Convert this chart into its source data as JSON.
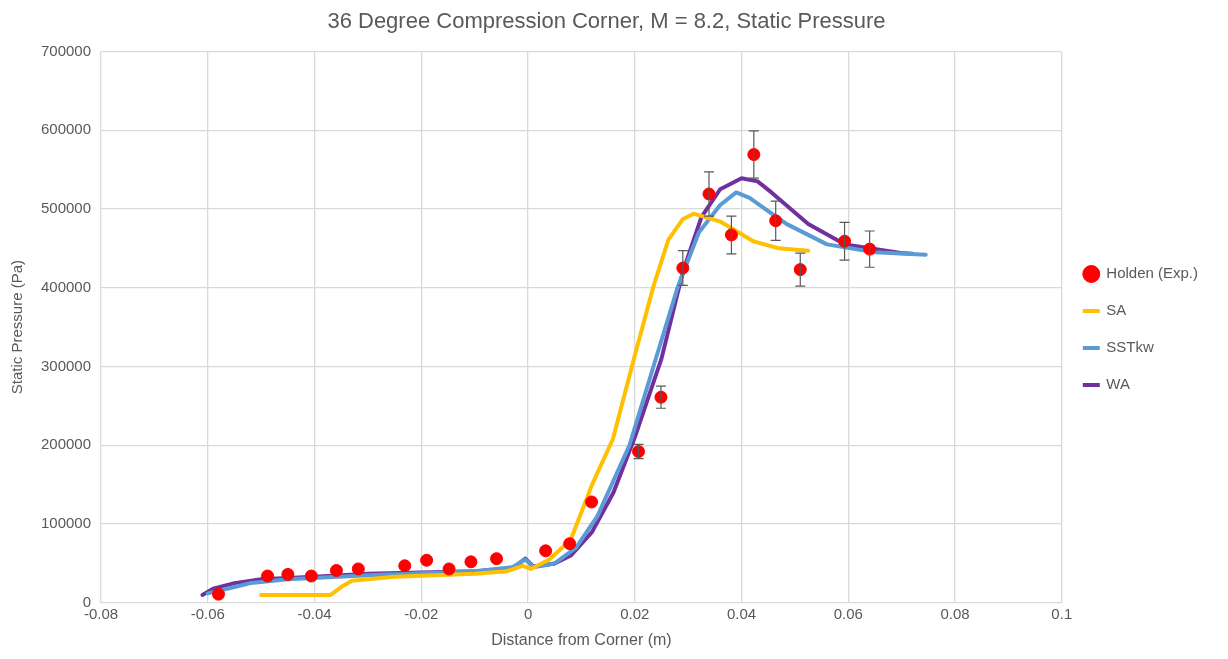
{
  "chart_data": {
    "type": "scatter",
    "title": "36 Degree Compression Corner, M = 8.2, Static Pressure",
    "xlabel": "Distance from Corner (m)",
    "ylabel": "Static Pressure (Pa)",
    "xlim": [
      -0.08,
      0.1
    ],
    "xticks": [
      -0.08,
      -0.06,
      -0.04,
      -0.02,
      0,
      0.02,
      0.04,
      0.06,
      0.08,
      0.1
    ],
    "ylim": [
      0,
      700000
    ],
    "yticks": [
      0,
      100000,
      200000,
      300000,
      400000,
      500000,
      600000,
      700000
    ],
    "grid": true,
    "legend": "right",
    "series": [
      {
        "name": "Holden (Exp.)",
        "marker": "circle",
        "color": "#ff0000",
        "x": [
          -0.058,
          -0.0488,
          -0.045,
          -0.0406,
          -0.0359,
          -0.0318,
          -0.0231,
          -0.019,
          -0.0148,
          -0.0107,
          -0.0059,
          0.0033,
          0.0078,
          0.0119,
          0.0207,
          0.0249,
          0.029,
          0.0339,
          0.0381,
          0.0423,
          0.0464,
          0.051,
          0.0593,
          0.064
        ],
        "values": [
          11000,
          34000,
          36000,
          34000,
          41000,
          43000,
          47000,
          54000,
          43000,
          52000,
          56000,
          66000,
          75000,
          128000,
          192000,
          261000,
          425000,
          519000,
          467000,
          569000,
          485000,
          423000,
          459000,
          449000
        ],
        "errors": [
          null,
          null,
          null,
          null,
          null,
          null,
          null,
          null,
          null,
          null,
          null,
          null,
          null,
          null,
          9000,
          14000,
          22000,
          28000,
          24000,
          30000,
          25000,
          21000,
          24000,
          23000
        ]
      },
      {
        "name": "SA",
        "type": "line",
        "color": "#ffc000",
        "x": [
          -0.05,
          -0.037,
          -0.035,
          -0.033,
          -0.025,
          -0.01,
          -0.004,
          -0.001,
          0.0005,
          0.004,
          0.008,
          0.012,
          0.0159,
          0.02,
          0.0235,
          0.0263,
          0.029,
          0.031,
          0.034,
          0.036,
          0.0422,
          0.047,
          0.0525
        ],
        "values": [
          10000,
          10000,
          20000,
          28000,
          33000,
          37000,
          40000,
          47000,
          43000,
          55000,
          80000,
          150000,
          208000,
          314000,
          402000,
          461000,
          487000,
          494000,
          488000,
          484000,
          459000,
          450000,
          447000
        ]
      },
      {
        "name": "SSTkw",
        "type": "line",
        "color": "#5b9bd5",
        "x": [
          -0.06,
          -0.055,
          -0.052,
          -0.045,
          -0.03,
          -0.01,
          -0.003,
          -0.0005,
          0.001,
          0.005,
          0.009,
          0.013,
          0.019,
          0.0235,
          0.028,
          0.032,
          0.036,
          0.039,
          0.0415,
          0.0484,
          0.056,
          0.065,
          0.0745
        ],
        "values": [
          12000,
          20000,
          25000,
          30000,
          35000,
          40000,
          45000,
          55000,
          45000,
          50000,
          70000,
          110000,
          200000,
          300000,
          400000,
          470000,
          505000,
          521000,
          514000,
          481000,
          455000,
          445000,
          442000
        ]
      },
      {
        "name": "WA",
        "type": "line",
        "color": "#7030a0",
        "x": [
          -0.061,
          -0.059,
          -0.055,
          -0.05,
          -0.04,
          -0.03,
          -0.01,
          -0.003,
          -0.0005,
          0.001,
          0.005,
          0.008,
          0.012,
          0.016,
          0.02,
          0.025,
          0.029,
          0.0325,
          0.036,
          0.04,
          0.043,
          0.0456,
          0.0525,
          0.0594,
          0.0698,
          0.072
        ],
        "values": [
          10000,
          18000,
          25000,
          30000,
          33000,
          37000,
          40000,
          43000,
          56000,
          46000,
          50000,
          60000,
          90000,
          140000,
          210000,
          310000,
          420000,
          490000,
          525000,
          539000,
          535000,
          521000,
          481000,
          455000,
          444000,
          443000
        ]
      }
    ]
  }
}
